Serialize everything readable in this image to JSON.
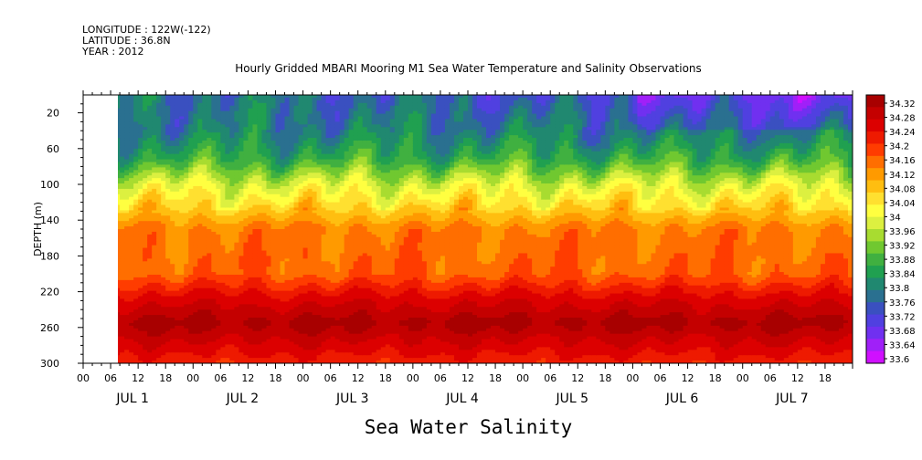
{
  "header": {
    "longitude": "LONGITUDE : 122W(-122)",
    "latitude": "LATITUDE : 36.8N",
    "year": "YEAR : 2012"
  },
  "chart_data": {
    "type": "heatmap",
    "title": "Hourly Gridded MBARI Mooring M1 Sea Water Temperature and Salinity Observations",
    "xlabel": "Sea Water Salinity",
    "ylabel": "DEPTH (m)",
    "ylim": [
      300,
      0
    ],
    "y_ticks": [
      20,
      60,
      100,
      140,
      180,
      220,
      260,
      300
    ],
    "x_hour_labels": [
      "00",
      "06",
      "12",
      "18",
      "00",
      "06",
      "12",
      "18",
      "00",
      "06",
      "12",
      "18",
      "00",
      "06",
      "12",
      "18",
      "00",
      "06",
      "12",
      "18",
      "00",
      "06",
      "12",
      "18",
      "00",
      "06",
      "12",
      "18"
    ],
    "x_day_labels": [
      "JUL 1",
      "JUL 2",
      "JUL 3",
      "JUL 4",
      "JUL 5",
      "JUL 6",
      "JUL 7"
    ],
    "x_range_hours": [
      0,
      168
    ],
    "data_start_hour": 6,
    "colorbar_levels": [
      "34.32",
      "34.28",
      "34.24",
      "34.2",
      "34.16",
      "34.12",
      "34.08",
      "34.04",
      "34",
      "33.96",
      "33.92",
      "33.88",
      "33.84",
      "33.8",
      "33.76",
      "33.72",
      "33.68",
      "33.64",
      "33.6"
    ],
    "colorbar_colors": [
      "#a80000",
      "#c40000",
      "#dc0000",
      "#ee1a00",
      "#ff3c00",
      "#ff6e00",
      "#ff9a00",
      "#ffbe10",
      "#ffe030",
      "#ffff40",
      "#dcf040",
      "#a8dc30",
      "#70c830",
      "#40b040",
      "#20a050",
      "#208870",
      "#2a7090",
      "#3a50c0",
      "#5040e0",
      "#7030f0",
      "#a020f8",
      "#d010ff"
    ],
    "depth_profile": [
      {
        "depth": 5,
        "value": 33.8
      },
      {
        "depth": 40,
        "value": 33.8
      },
      {
        "depth": 70,
        "value": 33.86
      },
      {
        "depth": 100,
        "value": 33.98
      },
      {
        "depth": 125,
        "value": 34.05
      },
      {
        "depth": 150,
        "value": 34.13
      },
      {
        "depth": 200,
        "value": 34.15
      },
      {
        "depth": 225,
        "value": 34.23
      },
      {
        "depth": 255,
        "value": 34.3
      },
      {
        "depth": 300,
        "value": 34.2
      }
    ]
  }
}
